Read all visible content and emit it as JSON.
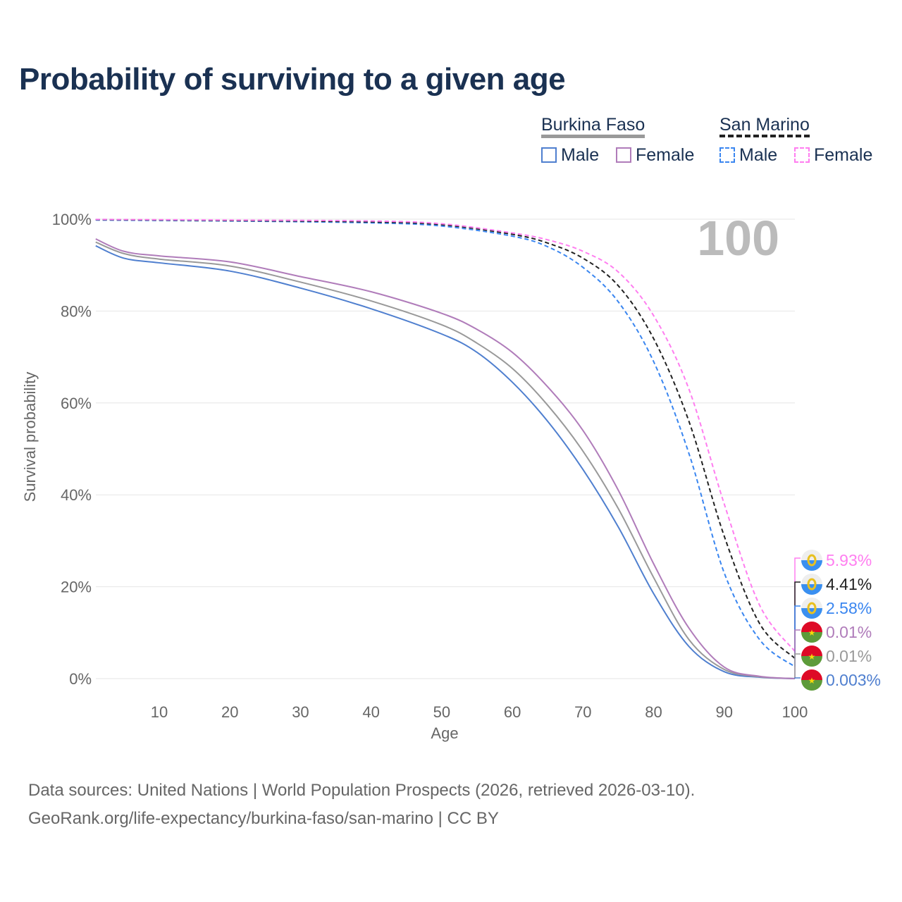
{
  "chart_data": {
    "type": "line",
    "title": "Probability of surviving to a given age",
    "xlabel": "Age",
    "ylabel": "Survival probability",
    "xlim": [
      1,
      100
    ],
    "ylim": [
      0,
      100
    ],
    "xticks": [
      10,
      20,
      30,
      40,
      50,
      60,
      70,
      80,
      90,
      100
    ],
    "yticks": [
      {
        "v": 0,
        "label": "0%"
      },
      {
        "v": 20,
        "label": "20%"
      },
      {
        "v": 40,
        "label": "40%"
      },
      {
        "v": 60,
        "label": "60%"
      },
      {
        "v": 80,
        "label": "80%"
      },
      {
        "v": 100,
        "label": "100%"
      }
    ],
    "annotation": "100",
    "legend": {
      "groups": [
        {
          "name": "Burkina Faso",
          "items": [
            "Male",
            "Female"
          ]
        },
        {
          "name": "San Marino",
          "items": [
            "Male",
            "Female"
          ]
        }
      ]
    },
    "series": [
      {
        "name": "Burkina Faso Male",
        "color": "#4f7fcf",
        "dash": false,
        "x": [
          1,
          5,
          10,
          20,
          30,
          40,
          50,
          55,
          60,
          65,
          70,
          75,
          80,
          85,
          90,
          95,
          100
        ],
        "y": [
          94.2,
          91.5,
          90.5,
          88.7,
          85,
          80.5,
          75,
          71,
          64.5,
          56,
          45.5,
          33,
          18.5,
          7,
          1.5,
          0.3,
          0.003
        ],
        "end_label": "0.003%",
        "flag": "bf"
      },
      {
        "name": "Burkina Faso Both",
        "color": "#999999",
        "dash": false,
        "x": [
          1,
          5,
          10,
          20,
          30,
          40,
          50,
          55,
          60,
          65,
          70,
          75,
          80,
          85,
          90,
          95,
          100
        ],
        "y": [
          95,
          92.5,
          91.3,
          89.8,
          86.3,
          82.2,
          77,
          73,
          67.5,
          59.5,
          49.5,
          37,
          22,
          8.5,
          2,
          0.4,
          0.01
        ],
        "end_label": "0.01%",
        "flag": "bf"
      },
      {
        "name": "Burkina Faso Female",
        "color": "#b07cba",
        "dash": false,
        "x": [
          1,
          5,
          10,
          20,
          30,
          40,
          50,
          55,
          60,
          65,
          70,
          75,
          80,
          85,
          90,
          95,
          100
        ],
        "y": [
          95.7,
          93,
          92,
          90.7,
          87.5,
          84.2,
          79.5,
          76,
          71,
          63.5,
          54,
          41,
          25,
          11,
          2.5,
          0.5,
          0.01
        ],
        "end_label": "0.01%",
        "flag": "bf"
      },
      {
        "name": "San Marino Male",
        "color": "#3a86f0",
        "dash": true,
        "x": [
          1,
          20,
          40,
          50,
          60,
          65,
          70,
          75,
          80,
          85,
          90,
          95,
          100
        ],
        "y": [
          99.8,
          99.6,
          99.2,
          98.5,
          96.3,
          94,
          89.5,
          82,
          69,
          49,
          23,
          8.5,
          2.58
        ],
        "end_label": "2.58%",
        "flag": "sm"
      },
      {
        "name": "San Marino Both",
        "color": "#222222",
        "dash": true,
        "x": [
          1,
          20,
          40,
          50,
          60,
          65,
          70,
          75,
          80,
          85,
          90,
          95,
          100
        ],
        "y": [
          99.9,
          99.7,
          99.4,
          98.8,
          96.7,
          94.8,
          91.5,
          85.5,
          74,
          56,
          31,
          12,
          4.41
        ],
        "end_label": "4.41%",
        "flag": "sm"
      },
      {
        "name": "San Marino Female",
        "color": "#ff7ef0",
        "dash": true,
        "x": [
          1,
          20,
          40,
          50,
          60,
          65,
          70,
          75,
          80,
          85,
          90,
          95,
          100
        ],
        "y": [
          99.95,
          99.8,
          99.6,
          99,
          97,
          95.5,
          93,
          88.5,
          79,
          63,
          38,
          16,
          5.93
        ],
        "end_label": "5.93%",
        "flag": "sm"
      }
    ]
  },
  "footer": {
    "line1": "Data sources: United Nations | World Population Prospects (2026, retrieved 2026-03-10).",
    "line2": "GeoRank.org/life-expectancy/burkina-faso/san-marino | CC BY"
  }
}
